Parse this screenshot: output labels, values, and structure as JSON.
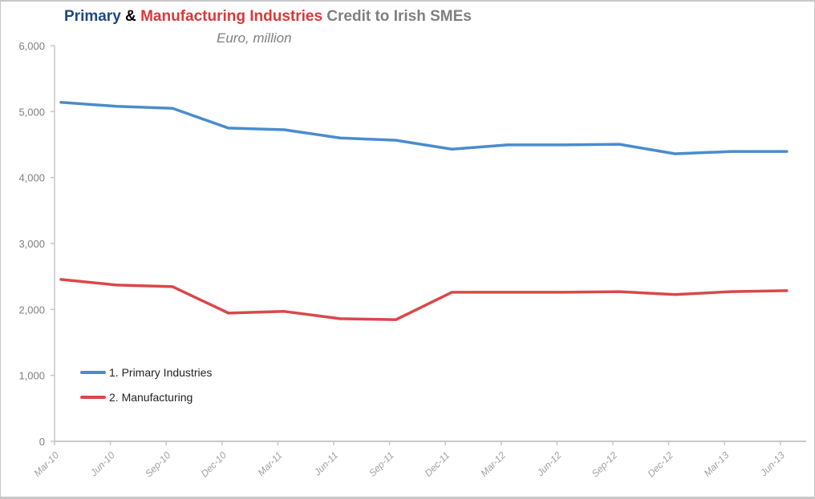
{
  "chart_data": {
    "type": "line",
    "title_parts": [
      {
        "text": "Primary",
        "color": "#1f497d"
      },
      {
        "text": " & ",
        "color": "#000000"
      },
      {
        "text": "Manufacturing Industries",
        "color": "#d9383a"
      },
      {
        "text": " Credit to Irish SMEs",
        "color": "#7f7f7f"
      }
    ],
    "subtitle": "Euro, million",
    "xlabel": "",
    "ylabel": "",
    "ylim": [
      0,
      6000
    ],
    "yticks": [
      "0",
      "1,000",
      "2,000",
      "3,000",
      "4,000",
      "5,000",
      "6,000"
    ],
    "grid": false,
    "legend_position": "bottom-left",
    "categories": [
      "Mar-10",
      "Jun-10",
      "Sep-10",
      "Dec-10",
      "Mar-11",
      "Jun-11",
      "Sep-11",
      "Dec-11",
      "Mar-12",
      "Jun-12",
      "Sep-12",
      "Dec-12",
      "Mar-13",
      "Jun-13"
    ],
    "series": [
      {
        "name": "1. Primary Industries",
        "color": "#4a8ccc",
        "values": [
          5140,
          5080,
          5050,
          4750,
          4725,
          4600,
          4565,
          4430,
          4495,
          4495,
          4505,
          4360,
          4395,
          4395
        ]
      },
      {
        "name": "2. Manufacturing",
        "color": "#d9484a",
        "values": [
          2455,
          2370,
          2345,
          1945,
          1970,
          1860,
          1845,
          2260,
          2260,
          2260,
          2270,
          2225,
          2270,
          2285
        ]
      }
    ]
  }
}
